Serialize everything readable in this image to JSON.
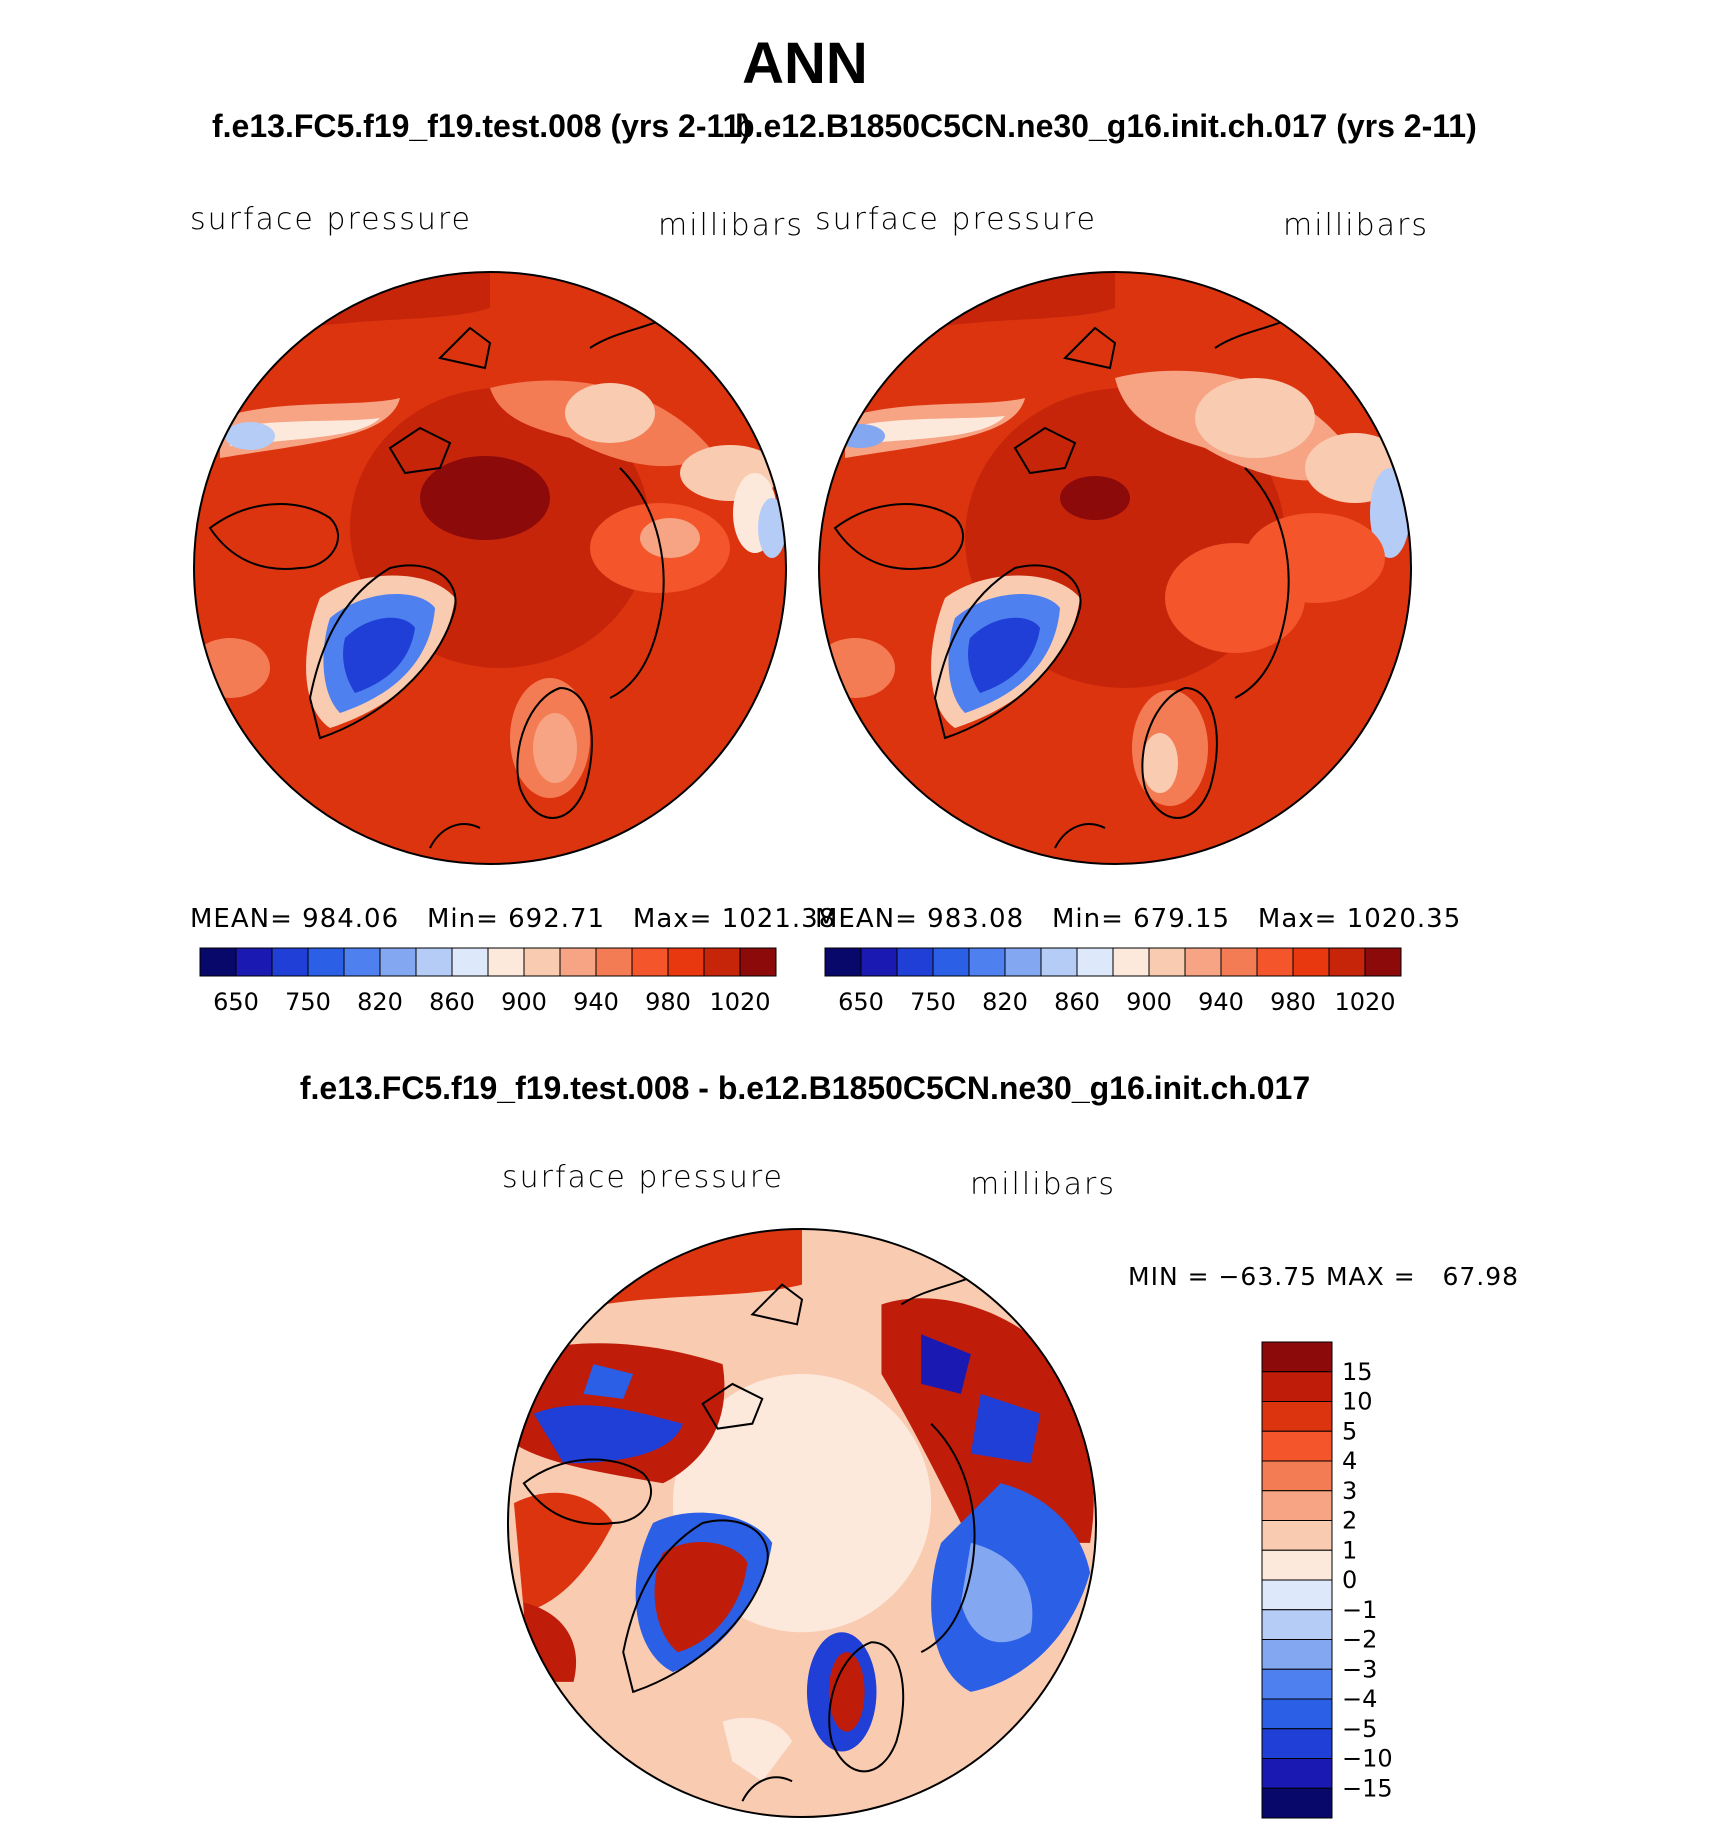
{
  "title": "ANN",
  "panels": [
    {
      "case_title": "f.e13.FC5.f19_f19.test.008 (yrs 2-11)",
      "variable": "surface pressure",
      "units": "millibars",
      "stats": {
        "mean_label": "MEAN=",
        "mean": "984.06",
        "min_label": "Min=",
        "min": "692.71",
        "max_label": "Max=",
        "max": "1021.38"
      }
    },
    {
      "case_title": "b.e12.B1850C5CN.ne30_g16.init.ch.017 (yrs 2-11)",
      "variable": "surface pressure",
      "units": "millibars",
      "stats": {
        "mean_label": "MEAN=",
        "mean": "983.08",
        "min_label": "Min=",
        "min": "679.15",
        "max_label": "Max=",
        "max": "1020.35"
      }
    }
  ],
  "colorbar": {
    "tick_labels": [
      "650",
      "750",
      "820",
      "860",
      "900",
      "940",
      "980",
      "1020"
    ],
    "colors": [
      "#08086b",
      "#1a1ab3",
      "#1f3fd6",
      "#2a5fe6",
      "#4f80f0",
      "#84a7f2",
      "#b5ccf7",
      "#dde8fb",
      "#fde9dc",
      "#f9cbb1",
      "#f6a483",
      "#f47c55",
      "#f4552b",
      "#e8380f",
      "#c7250a",
      "#8c0a0a"
    ]
  },
  "difference": {
    "title": "f.e13.FC5.f19_f19.test.008 - b.e12.B1850C5CN.ne30_g16.init.ch.017",
    "variable": "surface pressure",
    "units": "millibars",
    "range_text": "MIN = −63.75 MAX =   67.98",
    "levels": [
      "15",
      "10",
      "5",
      "4",
      "3",
      "2",
      "1",
      "0",
      "−1",
      "−2",
      "−3",
      "−4",
      "−5",
      "−10",
      "−15"
    ],
    "colors": [
      "#8c0a0a",
      "#c01c0a",
      "#dd3410",
      "#f4552b",
      "#f47c55",
      "#f6a483",
      "#f9cbb1",
      "#fde9dc",
      "#dde8fb",
      "#b5ccf7",
      "#84a7f2",
      "#4f80f0",
      "#2a5fe6",
      "#1f3fd6",
      "#1a1ab3",
      "#08086b"
    ]
  }
}
